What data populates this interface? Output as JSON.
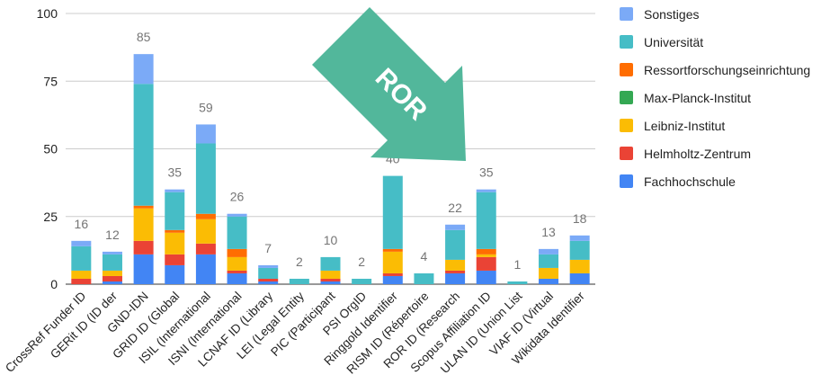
{
  "chart_data": {
    "type": "bar",
    "stacked": true,
    "categories": [
      "CrossRef Funder ID",
      "GERit ID (ID der",
      "GND-IDN",
      "GRID ID (Global",
      "ISIL (International",
      "ISNI (International",
      "LCNAF ID (Library",
      "LEI (Legal Entity",
      "PIC (Participant",
      "PSI OrgID",
      "Ringgold Identifier",
      "RISM ID (Répertoire",
      "ROR ID (Research",
      "Scopus Affiliation ID",
      "ULAN ID (Union List",
      "VIAF ID (Virtual",
      "Wikidata Identifier"
    ],
    "series": [
      {
        "name": "Fachhochschule",
        "color": "#4285f4",
        "values": [
          0,
          1,
          11,
          7,
          11,
          4,
          1,
          0,
          1,
          0,
          3,
          0,
          4,
          5,
          0,
          2,
          4
        ]
      },
      {
        "name": "Helmholtz-Zentrum",
        "color": "#ea4335",
        "values": [
          2,
          2,
          5,
          4,
          4,
          1,
          1,
          0,
          1,
          0,
          1,
          0,
          1,
          5,
          0,
          0,
          0
        ]
      },
      {
        "name": "Leibniz-Institut",
        "color": "#fbbc04",
        "values": [
          3,
          2,
          12,
          8,
          9,
          5,
          0,
          0,
          3,
          0,
          8,
          0,
          4,
          1,
          0,
          4,
          5
        ]
      },
      {
        "name": "Max-Planck-Institut",
        "color": "#34a853",
        "values": [
          0,
          0,
          0,
          0,
          0,
          0,
          0,
          0,
          0,
          0,
          0,
          0,
          0,
          0,
          0,
          0,
          0
        ]
      },
      {
        "name": "Ressortforschungseinrichtung",
        "color": "#ff6d01",
        "values": [
          0,
          0,
          1,
          1,
          2,
          3,
          0,
          0,
          0,
          0,
          1,
          0,
          0,
          2,
          0,
          0,
          0
        ]
      },
      {
        "name": "Universität",
        "color": "#46bdc6",
        "values": [
          9,
          6,
          45,
          14,
          26,
          12,
          4,
          2,
          5,
          2,
          27,
          4,
          11,
          21,
          1,
          5,
          7
        ]
      },
      {
        "name": "Sonstiges",
        "color": "#7baaf7",
        "values": [
          2,
          1,
          11,
          1,
          7,
          1,
          1,
          0,
          0,
          0,
          0,
          0,
          2,
          1,
          0,
          2,
          2
        ]
      }
    ],
    "totals": [
      16,
      12,
      85,
      35,
      59,
      26,
      7,
      2,
      10,
      2,
      40,
      4,
      22,
      35,
      1,
      13,
      18
    ],
    "ylim": [
      0,
      100
    ],
    "yticks": [
      0,
      25,
      50,
      75,
      100
    ],
    "grid": true,
    "legend_position": "right",
    "legend_order": [
      "Sonstiges",
      "Universität",
      "Ressortforschungseinrichtung",
      "Max-Planck-Institut",
      "Leibniz-Institut",
      "Helmholtz-Zentrum",
      "Fachhochschule"
    ],
    "annotation": {
      "text": "ROR",
      "color": "#52b79b"
    }
  }
}
